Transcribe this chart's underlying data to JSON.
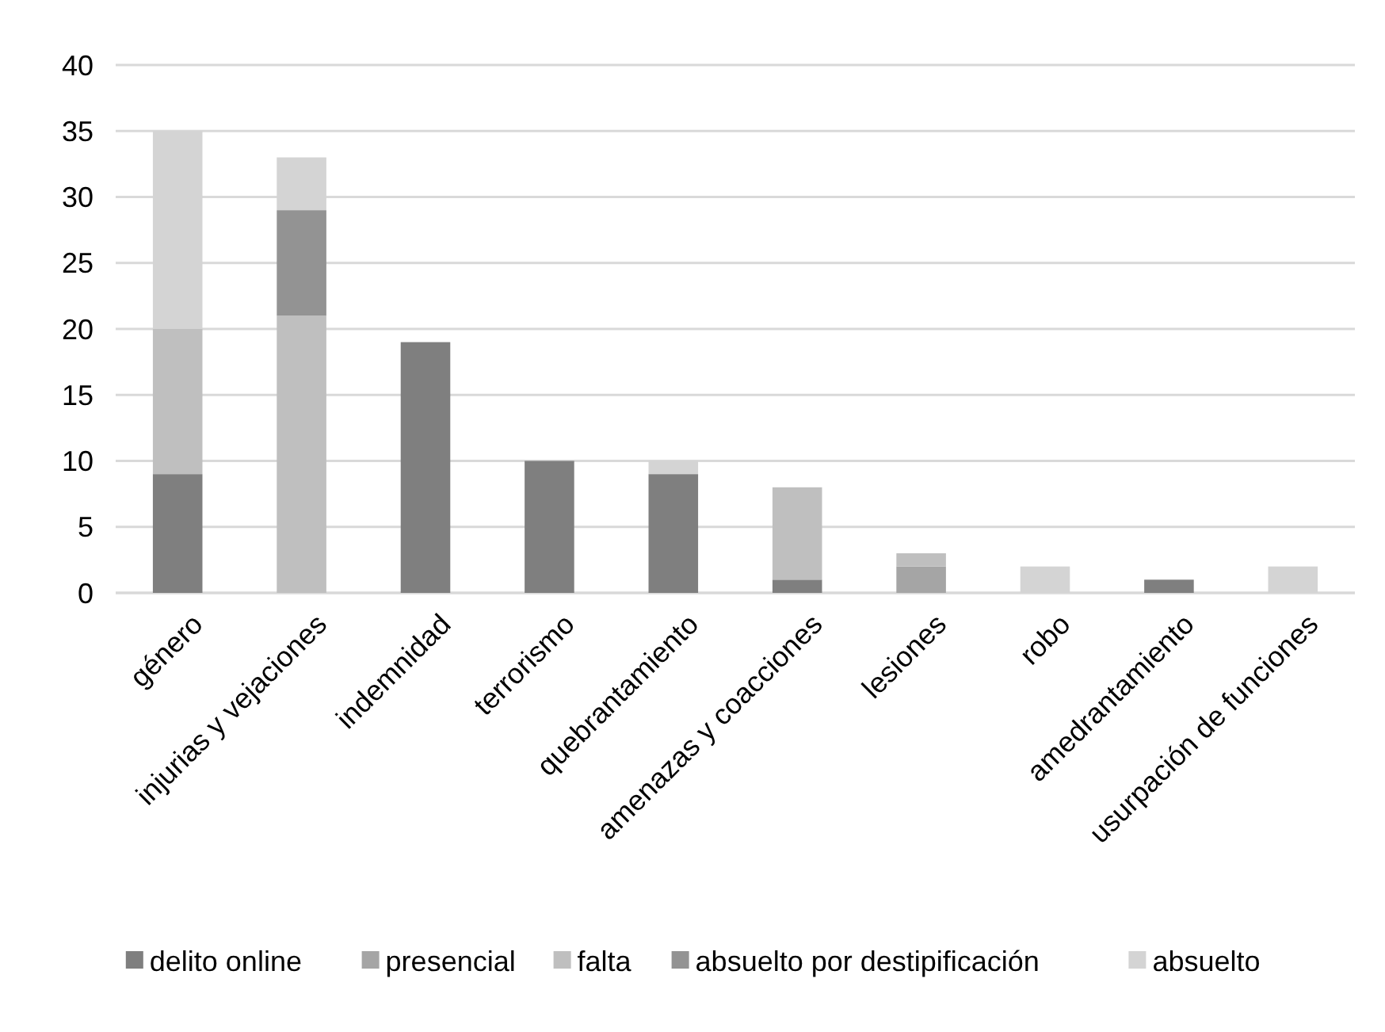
{
  "chart_data": {
    "type": "bar",
    "stacked": true,
    "categories": [
      "género",
      "injurias y vejaciones",
      "indemnidad",
      "terrorismo",
      "quebrantamiento",
      "amenazas y coacciones",
      "lesiones",
      "robo",
      "amedrantamiento",
      "usurpación de funciones"
    ],
    "series": [
      {
        "name": "delito online",
        "color": "#7f7f7f",
        "values": [
          9,
          0,
          19,
          10,
          9,
          1,
          0,
          0,
          1,
          0
        ]
      },
      {
        "name": "presencial",
        "color": "#a5a5a5",
        "values": [
          0,
          0,
          0,
          0,
          0,
          0,
          2,
          0,
          0,
          0
        ]
      },
      {
        "name": "falta",
        "color": "#bfbfbf",
        "values": [
          11,
          21,
          0,
          0,
          0,
          7,
          1,
          0,
          0,
          0
        ]
      },
      {
        "name": "absuelto por destipificación",
        "color": "#939393",
        "values": [
          0,
          8,
          0,
          0,
          0,
          0,
          0,
          0,
          0,
          0
        ]
      },
      {
        "name": "absuelto",
        "color": "#d4d4d4",
        "values": [
          15,
          4,
          0,
          0,
          1,
          0,
          0,
          2,
          0,
          2
        ]
      }
    ],
    "ylim": [
      0,
      40
    ],
    "yticks": [
      0,
      5,
      10,
      15,
      20,
      25,
      30,
      35,
      40
    ],
    "grid": "y",
    "legend": "bottom"
  }
}
